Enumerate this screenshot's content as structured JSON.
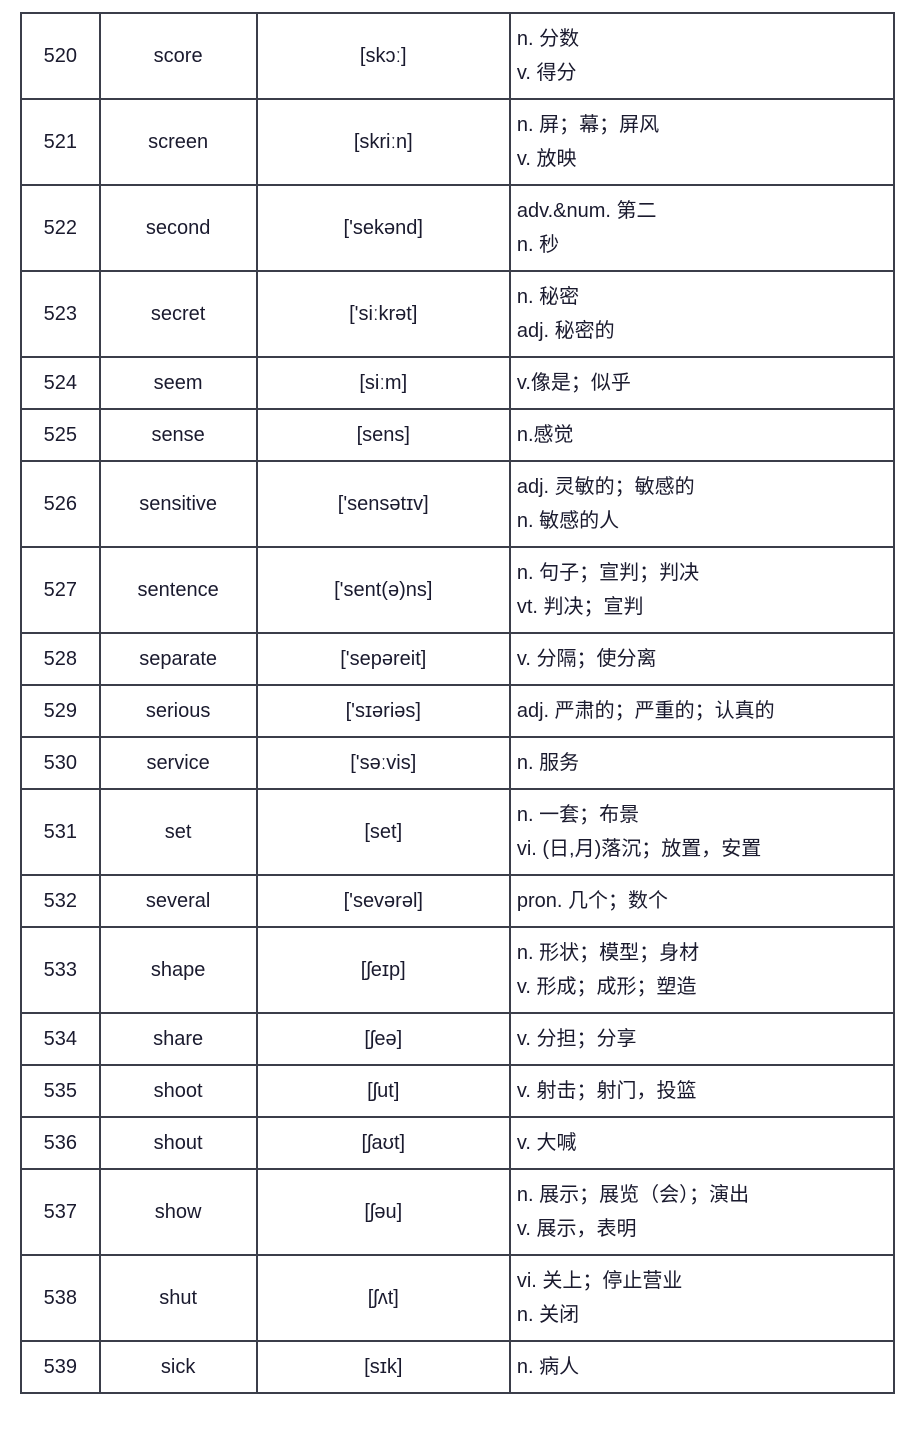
{
  "table": {
    "border_color": "#3b3e4a",
    "text_color": "#1a1a2e",
    "background_color": "#ffffff",
    "font_size_pt": 15,
    "columns": [
      {
        "key": "num",
        "width_pct": 9,
        "align": "center"
      },
      {
        "key": "word",
        "width_pct": 18,
        "align": "center"
      },
      {
        "key": "phon",
        "width_pct": 29,
        "align": "center"
      },
      {
        "key": "def",
        "width_pct": 44,
        "align": "left"
      }
    ],
    "rows": [
      {
        "num": "520",
        "word": "score",
        "phon": "[skɔː]",
        "def": "n. 分数\nv. 得分"
      },
      {
        "num": "521",
        "word": "screen",
        "phon": "[skriːn]",
        "def": "n. 屏；幕；屏风\nv. 放映"
      },
      {
        "num": "522",
        "word": "second",
        "phon": "['sekənd]",
        "def": "adv.&num. 第二\nn. 秒"
      },
      {
        "num": "523",
        "word": "secret",
        "phon": "['siːkrət]",
        "def": "n. 秘密\nadj. 秘密的"
      },
      {
        "num": "524",
        "word": "seem",
        "phon": "[siːm]",
        "def": "v.像是；似乎"
      },
      {
        "num": "525",
        "word": "sense",
        "phon": "[sens]",
        "def": "n.感觉"
      },
      {
        "num": "526",
        "word": "sensitive",
        "phon": "['sensətɪv]",
        "def": "adj. 灵敏的；敏感的\nn. 敏感的人"
      },
      {
        "num": "527",
        "word": "sentence",
        "phon": "['sent(ə)ns]",
        "def": "n. 句子；宣判；判决\nvt. 判决；宣判"
      },
      {
        "num": "528",
        "word": "separate",
        "phon": "['sepəreit]",
        "def": "v. 分隔；使分离"
      },
      {
        "num": "529",
        "word": "serious",
        "phon": "['sɪəriəs]",
        "def": "adj. 严肃的；严重的；认真的"
      },
      {
        "num": "530",
        "word": "service",
        "phon": "['səːvis]",
        "def": "n. 服务"
      },
      {
        "num": "531",
        "word": "set",
        "phon": "[set]",
        "def": "n. 一套；布景\nvi. (日,月)落沉；放置，安置"
      },
      {
        "num": "532",
        "word": "several",
        "phon": "['sevərəl]",
        "def": "pron. 几个；数个"
      },
      {
        "num": "533",
        "word": "shape",
        "phon": "[ʃeɪp]",
        "def": "n. 形状；模型；身材\nv. 形成；成形；塑造"
      },
      {
        "num": "534",
        "word": "share",
        "phon": "[ʃeə]",
        "def": "v. 分担；分享"
      },
      {
        "num": "535",
        "word": "shoot",
        "phon": "[ʃut]",
        "def": "v. 射击；射门，投篮"
      },
      {
        "num": "536",
        "word": "shout",
        "phon": "[ʃaʊt]",
        "def": "v. 大喊"
      },
      {
        "num": "537",
        "word": "show",
        "phon": "[ʃəu]",
        "def": "n. 展示；展览（会）；演出\nv. 展示，表明"
      },
      {
        "num": "538",
        "word": "shut",
        "phon": "[ʃʌt]",
        "def": "vi. 关上；停止营业\nn. 关闭"
      },
      {
        "num": "539",
        "word": "sick",
        "phon": "[sɪk]",
        "def": "n. 病人"
      }
    ]
  }
}
